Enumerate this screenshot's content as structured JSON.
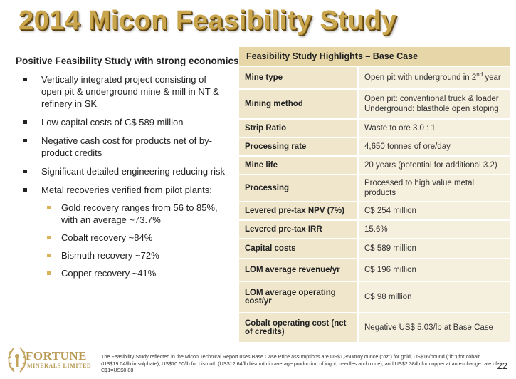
{
  "title": "2014 Micon Feasibility Study",
  "left": {
    "heading": "Positive Feasibility Study with strong economics",
    "bullets": [
      "Vertically integrated project consisting of open pit & underground mine & mill in NT & refinery in SK",
      "Low capital costs of C$ 589 million",
      "Negative cash cost for products net of by-product credits",
      "Significant detailed engineering reducing risk",
      "Metal recoveries verified from pilot plants;"
    ],
    "sub_bullets": [
      "Gold recovery ranges from 56 to 85%, with an average ~73.7%",
      "Cobalt recovery ~84%",
      "Bismuth recovery ~72%",
      "Copper recovery ~41%"
    ]
  },
  "table": {
    "header": "Feasibility Study Highlights – Base Case",
    "rows": [
      {
        "label": "Mine type",
        "value_a": "Open pit with underground in 2",
        "value_sup": "nd",
        "value_b": " year"
      },
      {
        "label": "Mining method",
        "value": "Open pit: conventional truck & loader",
        "value2": "Underground: blasthole open stoping"
      },
      {
        "label": "Strip Ratio",
        "value": "Waste to ore  3.0 : 1"
      },
      {
        "label": "Processing rate",
        "value": "4,650 tonnes of ore/day"
      },
      {
        "label": "Mine life",
        "value": "20 years (potential for additional 3.2)"
      },
      {
        "label": "Processing",
        "value": "Processed to high value metal products"
      },
      {
        "label": "Levered pre-tax NPV (7%)",
        "value": "C$ 254 million"
      },
      {
        "label": "Levered pre-tax IRR",
        "value": "15.6%"
      },
      {
        "label": "Capital costs",
        "value": "C$ 589 million"
      },
      {
        "label": "LOM average revenue/yr",
        "value": "C$ 196 million"
      },
      {
        "label": "LOM average operating cost/yr",
        "value": "C$ 98 million"
      },
      {
        "label": "Cobalt operating cost (net of credits)",
        "value": "Negative US$ 5.03/lb at Base Case"
      }
    ]
  },
  "footnote": "The Feasibility Study reflected in the Micon Technical Report uses Base Case Price assumptions are US$1,350/troy ounce (\"oz\") for gold, US$16/pound (\"lb\") for cobalt (US$19.04/lb in sulphate), US$10.50/lb for bismuth (US$12.64/lb bismuth in average production of ingot, needles and oxide), and US$2.38/lb for copper at an exchange rate of C$1=US$0.88",
  "page_number": "22",
  "logo": {
    "line1": "FORTUNE",
    "line2": "MINERALS LIMITED",
    "icon": "fortune-laurel-logo-icon"
  }
}
